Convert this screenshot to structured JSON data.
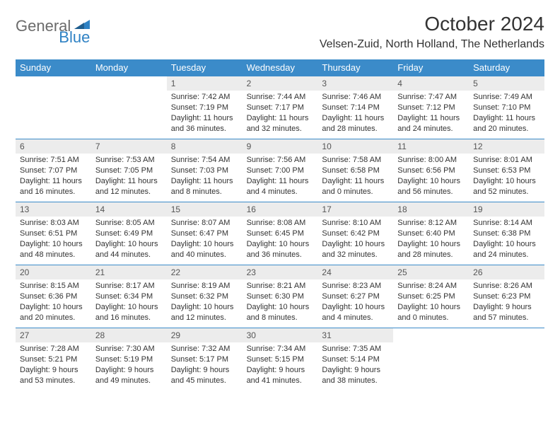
{
  "logo": {
    "part1": "General",
    "part2": "Blue"
  },
  "title": "October 2024",
  "location": "Velsen-Zuid, North Holland, The Netherlands",
  "colors": {
    "header_bg": "#3b8bc9",
    "header_fg": "#ffffff",
    "date_bg": "#ececec",
    "border": "#3b8bc9",
    "logo_gray": "#6b6b6b",
    "logo_blue": "#2f82c4"
  },
  "day_names": [
    "Sunday",
    "Monday",
    "Tuesday",
    "Wednesday",
    "Thursday",
    "Friday",
    "Saturday"
  ],
  "weeks": [
    [
      null,
      null,
      {
        "n": "1",
        "sr": "Sunrise: 7:42 AM",
        "ss": "Sunset: 7:19 PM",
        "dl": "Daylight: 11 hours and 36 minutes."
      },
      {
        "n": "2",
        "sr": "Sunrise: 7:44 AM",
        "ss": "Sunset: 7:17 PM",
        "dl": "Daylight: 11 hours and 32 minutes."
      },
      {
        "n": "3",
        "sr": "Sunrise: 7:46 AM",
        "ss": "Sunset: 7:14 PM",
        "dl": "Daylight: 11 hours and 28 minutes."
      },
      {
        "n": "4",
        "sr": "Sunrise: 7:47 AM",
        "ss": "Sunset: 7:12 PM",
        "dl": "Daylight: 11 hours and 24 minutes."
      },
      {
        "n": "5",
        "sr": "Sunrise: 7:49 AM",
        "ss": "Sunset: 7:10 PM",
        "dl": "Daylight: 11 hours and 20 minutes."
      }
    ],
    [
      {
        "n": "6",
        "sr": "Sunrise: 7:51 AM",
        "ss": "Sunset: 7:07 PM",
        "dl": "Daylight: 11 hours and 16 minutes."
      },
      {
        "n": "7",
        "sr": "Sunrise: 7:53 AM",
        "ss": "Sunset: 7:05 PM",
        "dl": "Daylight: 11 hours and 12 minutes."
      },
      {
        "n": "8",
        "sr": "Sunrise: 7:54 AM",
        "ss": "Sunset: 7:03 PM",
        "dl": "Daylight: 11 hours and 8 minutes."
      },
      {
        "n": "9",
        "sr": "Sunrise: 7:56 AM",
        "ss": "Sunset: 7:00 PM",
        "dl": "Daylight: 11 hours and 4 minutes."
      },
      {
        "n": "10",
        "sr": "Sunrise: 7:58 AM",
        "ss": "Sunset: 6:58 PM",
        "dl": "Daylight: 11 hours and 0 minutes."
      },
      {
        "n": "11",
        "sr": "Sunrise: 8:00 AM",
        "ss": "Sunset: 6:56 PM",
        "dl": "Daylight: 10 hours and 56 minutes."
      },
      {
        "n": "12",
        "sr": "Sunrise: 8:01 AM",
        "ss": "Sunset: 6:53 PM",
        "dl": "Daylight: 10 hours and 52 minutes."
      }
    ],
    [
      {
        "n": "13",
        "sr": "Sunrise: 8:03 AM",
        "ss": "Sunset: 6:51 PM",
        "dl": "Daylight: 10 hours and 48 minutes."
      },
      {
        "n": "14",
        "sr": "Sunrise: 8:05 AM",
        "ss": "Sunset: 6:49 PM",
        "dl": "Daylight: 10 hours and 44 minutes."
      },
      {
        "n": "15",
        "sr": "Sunrise: 8:07 AM",
        "ss": "Sunset: 6:47 PM",
        "dl": "Daylight: 10 hours and 40 minutes."
      },
      {
        "n": "16",
        "sr": "Sunrise: 8:08 AM",
        "ss": "Sunset: 6:45 PM",
        "dl": "Daylight: 10 hours and 36 minutes."
      },
      {
        "n": "17",
        "sr": "Sunrise: 8:10 AM",
        "ss": "Sunset: 6:42 PM",
        "dl": "Daylight: 10 hours and 32 minutes."
      },
      {
        "n": "18",
        "sr": "Sunrise: 8:12 AM",
        "ss": "Sunset: 6:40 PM",
        "dl": "Daylight: 10 hours and 28 minutes."
      },
      {
        "n": "19",
        "sr": "Sunrise: 8:14 AM",
        "ss": "Sunset: 6:38 PM",
        "dl": "Daylight: 10 hours and 24 minutes."
      }
    ],
    [
      {
        "n": "20",
        "sr": "Sunrise: 8:15 AM",
        "ss": "Sunset: 6:36 PM",
        "dl": "Daylight: 10 hours and 20 minutes."
      },
      {
        "n": "21",
        "sr": "Sunrise: 8:17 AM",
        "ss": "Sunset: 6:34 PM",
        "dl": "Daylight: 10 hours and 16 minutes."
      },
      {
        "n": "22",
        "sr": "Sunrise: 8:19 AM",
        "ss": "Sunset: 6:32 PM",
        "dl": "Daylight: 10 hours and 12 minutes."
      },
      {
        "n": "23",
        "sr": "Sunrise: 8:21 AM",
        "ss": "Sunset: 6:30 PM",
        "dl": "Daylight: 10 hours and 8 minutes."
      },
      {
        "n": "24",
        "sr": "Sunrise: 8:23 AM",
        "ss": "Sunset: 6:27 PM",
        "dl": "Daylight: 10 hours and 4 minutes."
      },
      {
        "n": "25",
        "sr": "Sunrise: 8:24 AM",
        "ss": "Sunset: 6:25 PM",
        "dl": "Daylight: 10 hours and 0 minutes."
      },
      {
        "n": "26",
        "sr": "Sunrise: 8:26 AM",
        "ss": "Sunset: 6:23 PM",
        "dl": "Daylight: 9 hours and 57 minutes."
      }
    ],
    [
      {
        "n": "27",
        "sr": "Sunrise: 7:28 AM",
        "ss": "Sunset: 5:21 PM",
        "dl": "Daylight: 9 hours and 53 minutes."
      },
      {
        "n": "28",
        "sr": "Sunrise: 7:30 AM",
        "ss": "Sunset: 5:19 PM",
        "dl": "Daylight: 9 hours and 49 minutes."
      },
      {
        "n": "29",
        "sr": "Sunrise: 7:32 AM",
        "ss": "Sunset: 5:17 PM",
        "dl": "Daylight: 9 hours and 45 minutes."
      },
      {
        "n": "30",
        "sr": "Sunrise: 7:34 AM",
        "ss": "Sunset: 5:15 PM",
        "dl": "Daylight: 9 hours and 41 minutes."
      },
      {
        "n": "31",
        "sr": "Sunrise: 7:35 AM",
        "ss": "Sunset: 5:14 PM",
        "dl": "Daylight: 9 hours and 38 minutes."
      },
      null,
      null
    ]
  ]
}
